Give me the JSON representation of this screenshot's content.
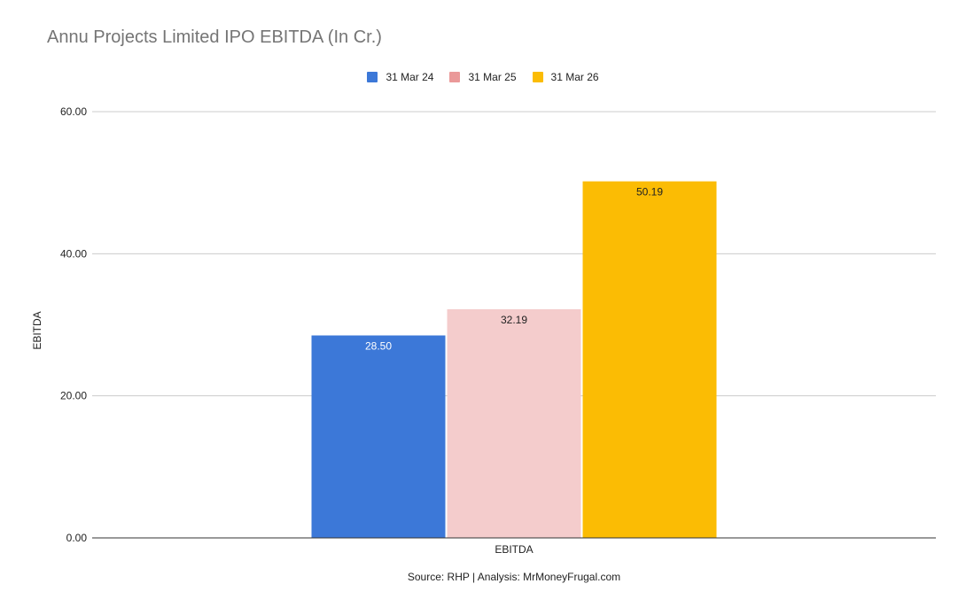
{
  "chart_data": {
    "type": "bar",
    "title": "Annu Projects Limited IPO EBITDA (In Cr.)",
    "xlabel": "",
    "ylabel": "EBITDA",
    "categories": [
      "EBITDA"
    ],
    "series": [
      {
        "name": "31 Mar 24",
        "values": [
          28.5
        ],
        "label": "28.50",
        "color": "#3c78d8",
        "label_color": "#ffffff"
      },
      {
        "name": "31 Mar 25",
        "values": [
          32.19
        ],
        "label": "32.19",
        "color": "#f4cccc",
        "label_color": "#222222",
        "legend_color": "#ea9999"
      },
      {
        "name": "31 Mar 26",
        "values": [
          50.19
        ],
        "label": "50.19",
        "color": "#fbbc04",
        "label_color": "#222222"
      }
    ],
    "ylim": [
      0,
      60
    ],
    "yticks": [
      "0.00",
      "20.00",
      "40.00",
      "60.00"
    ],
    "ytick_values": [
      0,
      20,
      40,
      60
    ],
    "grid": true,
    "legend_position": "top",
    "footnote": "Source: RHP | Analysis: MrMoneyFrugal.com"
  }
}
